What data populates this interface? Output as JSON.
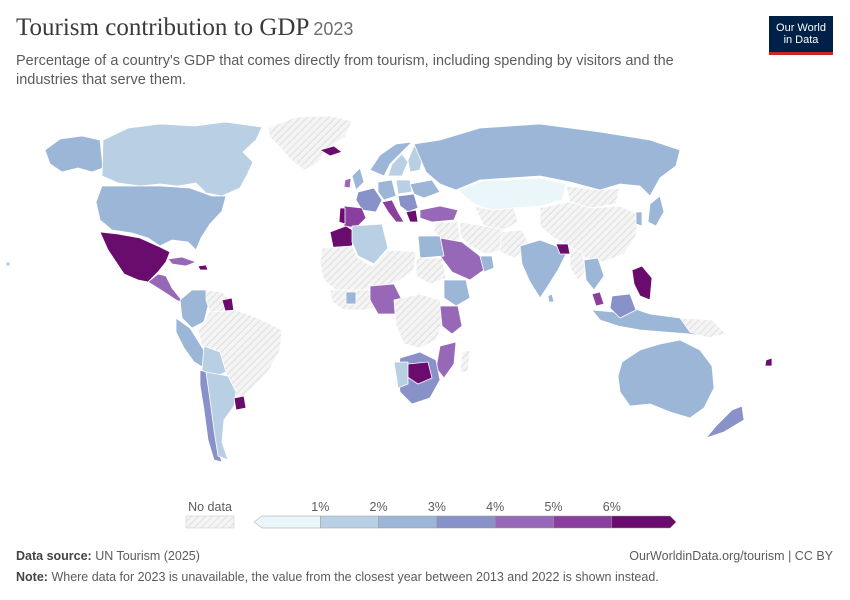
{
  "header": {
    "title": "Tourism contribution to GDP",
    "year": "2023",
    "subtitle": "Percentage of a country's GDP that comes directly from tourism, including spending by visitors and the industries that serve them."
  },
  "logo": {
    "line1": "Our World",
    "line2": "in Data"
  },
  "legend": {
    "no_data_label": "No data",
    "tick_labels": [
      "1%",
      "2%",
      "3%",
      "4%",
      "5%",
      "6%"
    ],
    "bins": [
      {
        "from": 0,
        "to": 1,
        "color": "#eaf6f9"
      },
      {
        "from": 1,
        "to": 2,
        "color": "#b9d0e4"
      },
      {
        "from": 2,
        "to": 3,
        "color": "#9bb6d7"
      },
      {
        "from": 3,
        "to": 4,
        "color": "#8891c8"
      },
      {
        "from": 4,
        "to": 5,
        "color": "#9868b8"
      },
      {
        "from": 5,
        "to": 6,
        "color": "#8a3f9e"
      },
      {
        "from": 6,
        "to": null,
        "color": "#6a0c6e"
      }
    ]
  },
  "footer": {
    "source_label": "Data source:",
    "source_text": "UN Tourism (2025)",
    "url": "OurWorldinData.org/tourism | CC BY",
    "note_label": "Note:",
    "note_text": "Where data for 2023 is unavailable, the value from the closest year between 2013 and 2022 is shown instead."
  },
  "colors": {
    "nodata": "#f2f2f2",
    "border": "#ffffff",
    "text": "#5b5b5b",
    "logo_bg": "#002147",
    "logo_accent": "#ce261e"
  }
}
